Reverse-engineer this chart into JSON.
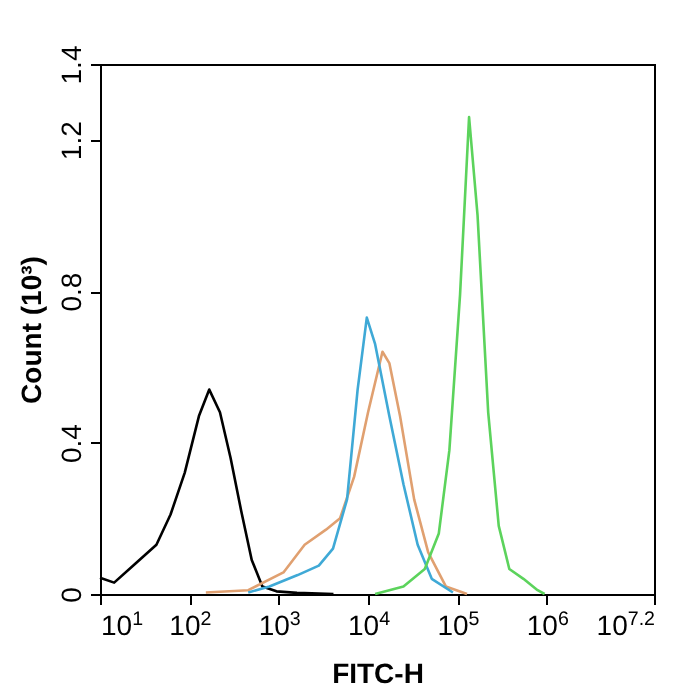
{
  "chart_data": {
    "type": "line",
    "xlabel": "FITC-H",
    "ylabel": "Count (10³)",
    "log": "x",
    "marker": "none",
    "line_style": "solid",
    "grid": false,
    "xlim": [
      10,
      15848932
    ],
    "xticks": [
      {
        "value": 10,
        "label": "10$^{1}$"
      },
      {
        "value": 100,
        "label": "10$^{2}$"
      },
      {
        "value": 1000,
        "label": "10$^{3}$"
      },
      {
        "value": 10000,
        "label": "10$^{4}$"
      },
      {
        "value": 100000,
        "label": "10$^{5}$"
      },
      {
        "value": 1000000,
        "label": "10$^{6}$"
      },
      {
        "value": 15848932,
        "label": "10$^{7.2}$"
      }
    ],
    "ylim": [
      0,
      1.4
    ],
    "yticks": [
      0,
      0.4,
      0.8,
      1.2,
      1.4
    ],
    "series": [
      {
        "color": "#000000",
        "x": [
          10,
          14.4,
          24.8,
          42.8,
          61.6,
          88.7,
          128,
          167,
          220,
          289,
          380,
          499,
          656,
          944,
          1600,
          4100
        ],
        "values": [
          0.043,
          0.03,
          0.08,
          0.13,
          0.21,
          0.32,
          0.47,
          0.54,
          0.48,
          0.36,
          0.22,
          0.09,
          0.02,
          0.007,
          0.003,
          0
        ]
      },
      {
        "color": "#e0a070",
        "x": [
          153,
          456,
          1130,
          1950,
          3380,
          4860,
          6990,
          10000,
          14500,
          17300,
          22800,
          32800,
          47100,
          74200,
          128000
        ],
        "values": [
          0.004,
          0.01,
          0.057,
          0.13,
          0.17,
          0.2,
          0.31,
          0.48,
          0.64,
          0.61,
          0.47,
          0.25,
          0.11,
          0.02,
          0
        ]
      },
      {
        "color": "#3fa9d6",
        "x": [
          456,
          787,
          1629,
          2810,
          4050,
          5820,
          7640,
          9680,
          12000,
          17300,
          24900,
          35900,
          51600,
          89100
        ],
        "values": [
          0.004,
          0.02,
          0.05,
          0.075,
          0.12,
          0.25,
          0.54,
          0.73,
          0.66,
          0.47,
          0.29,
          0.13,
          0.04,
          0.004
        ]
      },
      {
        "color": "#5cd35c",
        "x": [
          12000,
          24900,
          43100,
          61900,
          81300,
          107000,
          135000,
          168000,
          221000,
          290000,
          381000,
          548000,
          789000,
          946000
        ],
        "values": [
          0,
          0.02,
          0.066,
          0.16,
          0.38,
          0.79,
          1.26,
          1.0,
          0.48,
          0.18,
          0.066,
          0.04,
          0.01,
          0
        ]
      }
    ]
  }
}
